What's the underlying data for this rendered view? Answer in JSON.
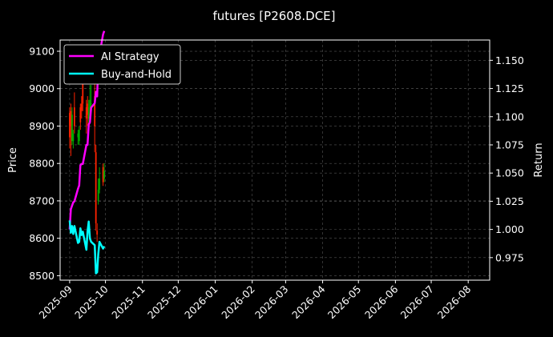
{
  "chart_data": {
    "type": "line",
    "title": "futures [P2608.DCE]",
    "xlabel": "",
    "ylabel_left": "Price",
    "ylabel_right": "Return",
    "x_ticks": [
      "2025-09",
      "2025-10",
      "2025-11",
      "2025-12",
      "2026-01",
      "2026-02",
      "2026-03",
      "2026-04",
      "2026-05",
      "2026-06",
      "2026-07",
      "2026-08"
    ],
    "xlim": [
      "2025-08-24",
      "2026-08-19"
    ],
    "ylim_left": [
      8488,
      9130
    ],
    "ylim_right": [
      0.955,
      1.168
    ],
    "y_ticks_left": [
      8500,
      8600,
      8700,
      8800,
      8900,
      9000,
      9100
    ],
    "y_ticks_right": [
      0.975,
      1.0,
      1.025,
      1.05,
      1.075,
      1.1,
      1.125,
      1.15
    ],
    "grid": true,
    "legend_position": "top-left",
    "colors": {
      "background": "#000000",
      "ai": "#ff00ff",
      "bh": "#00ffff",
      "up": "#00aa00",
      "down": "#ff2200",
      "grid": "#555555",
      "text": "#ffffff"
    },
    "series": [
      {
        "name": "AI Strategy",
        "axis": "right",
        "color": "#ff00ff",
        "x": [
          "2025-09-01",
          "2025-09-02",
          "2025-09-03",
          "2025-09-04",
          "2025-09-05",
          "2025-09-08",
          "2025-09-09",
          "2025-09-10",
          "2025-09-11",
          "2025-09-12",
          "2025-09-15",
          "2025-09-16",
          "2025-09-17",
          "2025-09-18",
          "2025-09-19",
          "2025-09-22",
          "2025-09-23",
          "2025-09-24",
          "2025-09-25",
          "2025-09-26",
          "2025-09-29",
          "2025-09-30"
        ],
        "values": [
          1.0,
          1.018,
          1.021,
          1.024,
          1.025,
          1.036,
          1.039,
          1.057,
          1.058,
          1.058,
          1.075,
          1.075,
          1.093,
          1.095,
          1.108,
          1.112,
          1.122,
          1.118,
          1.147,
          1.155,
          1.173,
          1.176
        ]
      },
      {
        "name": "Buy-and-Hold",
        "axis": "right",
        "color": "#00ffff",
        "x": [
          "2025-09-01",
          "2025-09-02",
          "2025-09-03",
          "2025-09-04",
          "2025-09-05",
          "2025-09-08",
          "2025-09-09",
          "2025-09-10",
          "2025-09-11",
          "2025-09-12",
          "2025-09-15",
          "2025-09-16",
          "2025-09-17",
          "2025-09-18",
          "2025-09-19",
          "2025-09-22",
          "2025-09-23",
          "2025-09-24",
          "2025-09-25",
          "2025-09-26",
          "2025-09-29",
          "2025-09-30"
        ],
        "values": [
          1.008,
          0.997,
          1.003,
          0.996,
          1.003,
          0.988,
          0.989,
          1.001,
          0.995,
          0.998,
          0.982,
          0.998,
          1.007,
          0.992,
          0.989,
          0.986,
          0.961,
          0.962,
          0.978,
          0.989,
          0.983,
          0.985
        ]
      }
    ],
    "candles": {
      "axis": "left",
      "x": [
        "2025-09-01",
        "2025-09-02",
        "2025-09-03",
        "2025-09-04",
        "2025-09-05",
        "2025-09-08",
        "2025-09-09",
        "2025-09-10",
        "2025-09-11",
        "2025-09-12",
        "2025-09-15",
        "2025-09-16",
        "2025-09-17",
        "2025-09-18",
        "2025-09-19",
        "2025-09-22",
        "2025-09-23",
        "2025-09-24",
        "2025-09-25",
        "2025-09-26",
        "2025-09-29",
        "2025-09-30"
      ],
      "open": [
        8935,
        8940,
        8860,
        8860,
        8950,
        8870,
        8860,
        8950,
        8960,
        9020,
        8950,
        8960,
        8920,
        8950,
        8960,
        8980,
        8830,
        8620,
        8700,
        8730,
        8790,
        8760
      ],
      "close": [
        8870,
        8900,
        8930,
        8880,
        8900,
        8880,
        8890,
        8910,
        8940,
        8960,
        8920,
        8930,
        8950,
        8970,
        8960,
        8900,
        8640,
        8610,
        8730,
        8760,
        8750,
        8780
      ],
      "high": [
        8950,
        8960,
        8950,
        8890,
        8990,
        8890,
        8900,
        8960,
        8980,
        9060,
        8970,
        8980,
        8970,
        9010,
        9010,
        9080,
        8850,
        8640,
        8760,
        8790,
        8800,
        8800
      ],
      "low": [
        8840,
        8820,
        8850,
        8840,
        8880,
        8850,
        8850,
        8890,
        8920,
        8940,
        8880,
        8900,
        8900,
        8930,
        8940,
        8830,
        8620,
        8590,
        8690,
        8720,
        8740,
        8750
      ]
    }
  }
}
